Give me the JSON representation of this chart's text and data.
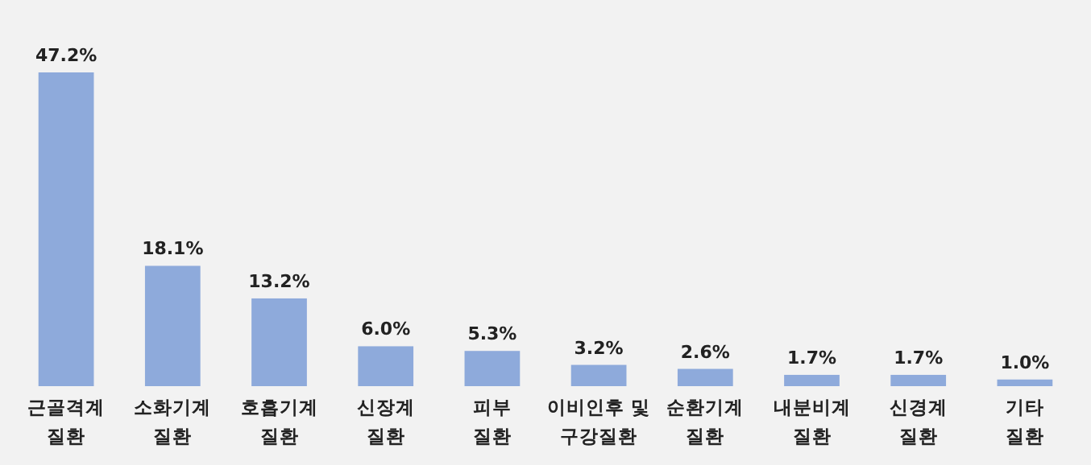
{
  "chart_data": {
    "type": "bar",
    "categories": [
      "근골격계 질환",
      "소화기계 질환",
      "호흡기계 질환",
      "신장계 질환",
      "피부 질환",
      "이비인후 및 구강질환",
      "순환기계 질환",
      "내분비계 질환",
      "신경계 질환",
      "기타 질환"
    ],
    "values": [
      47.2,
      18.1,
      13.2,
      6.0,
      5.3,
      3.2,
      2.6,
      1.7,
      1.7,
      1.0
    ],
    "value_labels": [
      "47.2%",
      "18.1%",
      "13.2%",
      "6.0%",
      "5.3%",
      "3.2%",
      "2.6%",
      "1.7%",
      "1.7%",
      "1.0%"
    ],
    "color": "#8eaadb"
  }
}
